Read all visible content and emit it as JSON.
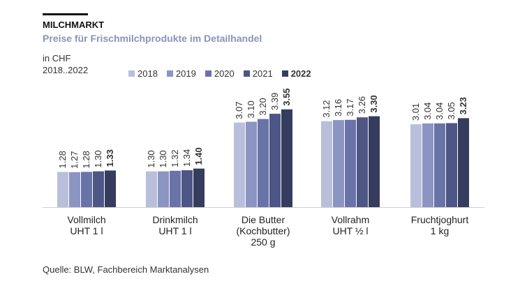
{
  "header": {
    "title": "MILCHMARKT",
    "subtitle": "Preise für Frischmilchprodukte  im Detailhandel",
    "unit_line1": "in CHF",
    "unit_line2": "2018..2022"
  },
  "source": "Quelle: BLW, Fachbereich Marktanalysen",
  "chart_data": {
    "type": "bar",
    "title": "Preise für Frischmilchprodukte  im Detailhandel",
    "ylabel": "in CHF",
    "ylim": [
      0,
      4
    ],
    "grid": false,
    "legend_position": "top",
    "categories": [
      [
        "Vollmilch",
        "UHT 1 l"
      ],
      [
        "Drinkmilch",
        "UHT 1 l"
      ],
      [
        "Die Butter",
        "(Kochbutter)",
        "250 g"
      ],
      [
        "Vollrahm",
        "UHT ½ l"
      ],
      [
        "Fruchtjoghurt",
        "1 kg"
      ]
    ],
    "series": [
      {
        "name": "2018",
        "color": "#b9bfdb",
        "values": [
          1.28,
          1.3,
          3.07,
          3.12,
          3.01
        ],
        "labels": [
          "1.28",
          "1.30",
          "3.07",
          "3.12",
          "3.01"
        ]
      },
      {
        "name": "2019",
        "color": "#8c94c2",
        "values": [
          1.27,
          1.3,
          3.1,
          3.16,
          3.04
        ],
        "labels": [
          "1.27",
          "1.30",
          "3.10",
          "3.16",
          "3.04"
        ]
      },
      {
        "name": "2020",
        "color": "#6a73a8",
        "values": [
          1.28,
          1.32,
          3.2,
          3.17,
          3.04
        ],
        "labels": [
          "1.28",
          "1.32",
          "3.20",
          "3.17",
          "3.04"
        ]
      },
      {
        "name": "2021",
        "color": "#4d5684",
        "values": [
          1.3,
          1.34,
          3.39,
          3.26,
          3.05
        ],
        "labels": [
          "1.30",
          "1.34",
          "3.39",
          "3.26",
          "3.05"
        ]
      },
      {
        "name": "2022",
        "color": "#353c5e",
        "values": [
          1.33,
          1.4,
          3.55,
          3.3,
          3.23
        ],
        "labels": [
          "1.33",
          "1.40",
          "3.55",
          "3.30",
          "3.23"
        ]
      }
    ]
  }
}
